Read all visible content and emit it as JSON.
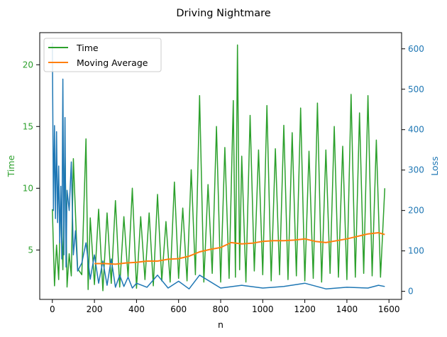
{
  "chart_data": {
    "type": "line",
    "title": "Driving Nightmare",
    "xlabel": "n",
    "ylabel_left": "Time",
    "ylabel_right": "Loss",
    "xlim": [
      -60,
      1660
    ],
    "ylim_left": [
      1.0,
      22.6
    ],
    "ylim_right": [
      -20,
      640
    ],
    "x_ticks": [
      0,
      200,
      400,
      600,
      800,
      1000,
      1200,
      1400,
      1600
    ],
    "y_ticks_left": [
      5,
      10,
      15,
      20
    ],
    "y_ticks_right": [
      0,
      100,
      200,
      300,
      400,
      500,
      600
    ],
    "grid": false,
    "legend_position": "top-left",
    "colors": {
      "time": "#2ca02c",
      "moving_average": "#ff7f0e",
      "loss": "#1f77b4",
      "axis": "#000000"
    },
    "series": [
      {
        "name": "Time",
        "axis": "left",
        "x": [
          0,
          10,
          20,
          30,
          40,
          50,
          60,
          70,
          80,
          90,
          100,
          120,
          140,
          160,
          170,
          180,
          200,
          220,
          240,
          260,
          280,
          300,
          320,
          340,
          360,
          380,
          400,
          420,
          440,
          460,
          480,
          500,
          520,
          540,
          560,
          580,
          600,
          620,
          640,
          660,
          680,
          700,
          720,
          740,
          760,
          780,
          800,
          820,
          840,
          860,
          870,
          880,
          890,
          900,
          920,
          940,
          960,
          980,
          1000,
          1020,
          1040,
          1060,
          1080,
          1100,
          1120,
          1140,
          1160,
          1180,
          1200,
          1220,
          1240,
          1260,
          1280,
          1300,
          1320,
          1340,
          1360,
          1380,
          1400,
          1420,
          1440,
          1460,
          1480,
          1500,
          1520,
          1540,
          1560,
          1580
        ],
        "values": [
          8.3,
          2.1,
          5.4,
          2.6,
          9.1,
          3.4,
          13.2,
          2.0,
          4.7,
          2.9,
          12.4,
          3.5,
          3.0,
          14.0,
          1.8,
          7.6,
          2.2,
          8.3,
          1.7,
          8.0,
          2.3,
          9.0,
          2.0,
          7.7,
          2.8,
          10.0,
          1.9,
          7.7,
          2.6,
          8.0,
          2.1,
          9.5,
          2.5,
          7.3,
          2.4,
          10.5,
          2.7,
          8.4,
          2.5,
          11.5,
          3.0,
          17.5,
          2.4,
          10.3,
          3.1,
          15.0,
          2.4,
          13.3,
          2.7,
          17.1,
          2.8,
          21.6,
          3.4,
          12.6,
          2.4,
          15.9,
          3.3,
          13.1,
          3.0,
          16.7,
          2.5,
          13.2,
          3.0,
          15.1,
          2.6,
          14.5,
          2.9,
          16.5,
          2.5,
          13.0,
          2.7,
          16.9,
          2.4,
          13.1,
          3.1,
          15.0,
          2.8,
          13.4,
          2.6,
          17.6,
          2.8,
          16.1,
          3.1,
          17.5,
          2.9,
          13.9,
          2.8,
          10.0
        ]
      },
      {
        "name": "Moving Average",
        "axis": "left",
        "x": [
          200,
          250,
          300,
          350,
          400,
          450,
          500,
          550,
          600,
          650,
          700,
          750,
          800,
          850,
          900,
          950,
          1000,
          1050,
          1100,
          1150,
          1200,
          1250,
          1300,
          1350,
          1400,
          1450,
          1500,
          1550,
          1580
        ],
        "values": [
          3.9,
          3.9,
          3.85,
          3.95,
          4.0,
          4.1,
          4.1,
          4.25,
          4.3,
          4.5,
          4.85,
          5.05,
          5.2,
          5.6,
          5.5,
          5.55,
          5.7,
          5.75,
          5.75,
          5.8,
          5.9,
          5.7,
          5.6,
          5.75,
          5.9,
          6.1,
          6.3,
          6.4,
          6.25
        ]
      },
      {
        "axis": "right",
        "x": [
          0,
          5,
          10,
          15,
          20,
          25,
          30,
          35,
          40,
          45,
          50,
          55,
          60,
          65,
          70,
          80,
          90,
          100,
          110,
          120,
          140,
          160,
          180,
          200,
          220,
          240,
          260,
          280,
          300,
          320,
          340,
          360,
          380,
          400,
          450,
          500,
          550,
          600,
          650,
          700,
          800,
          900,
          1000,
          1100,
          1200,
          1300,
          1400,
          1500,
          1550,
          1580
        ],
        "values": [
          615,
          200,
          410,
          180,
          395,
          170,
          310,
          120,
          260,
          80,
          525,
          90,
          430,
          60,
          250,
          200,
          320,
          90,
          150,
          50,
          70,
          120,
          30,
          90,
          20,
          75,
          15,
          80,
          10,
          40,
          12,
          35,
          8,
          20,
          10,
          40,
          8,
          25,
          6,
          40,
          8,
          15,
          8,
          12,
          20,
          6,
          10,
          8,
          15,
          12
        ]
      }
    ]
  }
}
